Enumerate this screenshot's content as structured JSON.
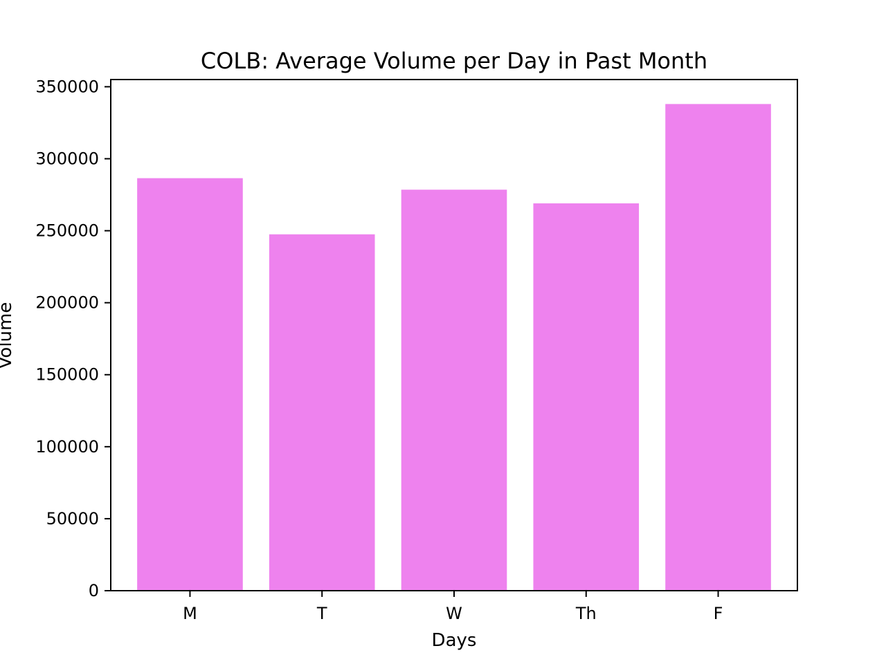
{
  "chart_data": {
    "type": "bar",
    "title": "COLB: Average Volume per Day in Past Month",
    "xlabel": "Days",
    "ylabel": "Volume",
    "categories": [
      "M",
      "T",
      "W",
      "Th",
      "F"
    ],
    "values": [
      286500,
      247500,
      278500,
      269000,
      338000
    ],
    "ylim": [
      0,
      355000
    ],
    "yticks": [
      0,
      50000,
      100000,
      150000,
      200000,
      250000,
      300000,
      350000
    ],
    "ytick_labels": [
      "0",
      "50000",
      "100000",
      "150000",
      "200000",
      "250000",
      "300000",
      "350000"
    ],
    "grid": false,
    "legend": "none",
    "colors": {
      "bar": "#ee82ee"
    }
  }
}
